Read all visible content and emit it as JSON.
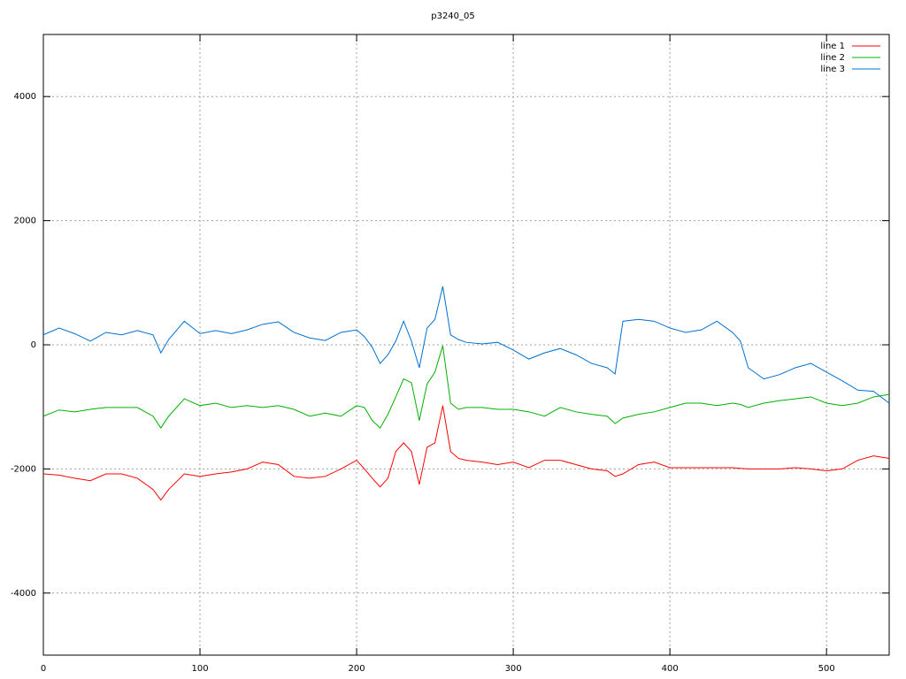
{
  "chart_data": {
    "type": "line",
    "title": "p3240_05",
    "x": [
      0,
      10,
      20,
      30,
      40,
      50,
      60,
      70,
      75,
      80,
      90,
      100,
      110,
      120,
      130,
      140,
      150,
      160,
      170,
      180,
      190,
      200,
      205,
      210,
      215,
      220,
      225,
      230,
      235,
      240,
      245,
      250,
      255,
      260,
      265,
      270,
      280,
      290,
      300,
      310,
      320,
      330,
      340,
      350,
      360,
      365,
      370,
      380,
      390,
      400,
      410,
      420,
      430,
      440,
      445,
      450,
      460,
      470,
      480,
      490,
      500,
      510,
      520,
      530,
      540
    ],
    "series": [
      {
        "name": "line 1",
        "color": "#ff0000",
        "values": [
          -2080,
          -2100,
          -2150,
          -2190,
          -2080,
          -2080,
          -2150,
          -2330,
          -2500,
          -2330,
          -2080,
          -2120,
          -2080,
          -2050,
          -2000,
          -1890,
          -1930,
          -2120,
          -2150,
          -2120,
          -2000,
          -1860,
          -2000,
          -2150,
          -2290,
          -2150,
          -1720,
          -1580,
          -1720,
          -2250,
          -1650,
          -1580,
          -980,
          -1720,
          -1830,
          -1860,
          -1890,
          -1930,
          -1890,
          -1980,
          -1860,
          -1860,
          -1930,
          -2000,
          -2030,
          -2120,
          -2080,
          -1930,
          -1890,
          -1980,
          -1980,
          -1980,
          -1980,
          -1980,
          -1990,
          -2000,
          -2000,
          -2000,
          -1980,
          -2000,
          -2030,
          -2000,
          -1860,
          -1790,
          -1830
        ]
      },
      {
        "name": "line 2",
        "color": "#00b000",
        "values": [
          -1150,
          -1050,
          -1080,
          -1040,
          -1010,
          -1010,
          -1010,
          -1150,
          -1340,
          -1150,
          -870,
          -980,
          -940,
          -1010,
          -980,
          -1010,
          -980,
          -1040,
          -1150,
          -1100,
          -1150,
          -980,
          -1010,
          -1220,
          -1340,
          -1120,
          -840,
          -550,
          -610,
          -1220,
          -630,
          -440,
          -15,
          -940,
          -1040,
          -1010,
          -1010,
          -1040,
          -1040,
          -1080,
          -1150,
          -1010,
          -1080,
          -1120,
          -1150,
          -1270,
          -1180,
          -1120,
          -1080,
          -1010,
          -940,
          -940,
          -980,
          -940,
          -960,
          -1010,
          -940,
          -900,
          -870,
          -840,
          -940,
          -980,
          -940,
          -840,
          -800
        ]
      },
      {
        "name": "line 3",
        "color": "#0070d0",
        "values": [
          160,
          270,
          180,
          60,
          200,
          160,
          230,
          160,
          -130,
          85,
          380,
          180,
          230,
          180,
          240,
          330,
          370,
          200,
          110,
          70,
          200,
          240,
          130,
          -40,
          -300,
          -160,
          60,
          380,
          60,
          -370,
          270,
          410,
          940,
          160,
          85,
          40,
          15,
          40,
          -85,
          -230,
          -130,
          -60,
          -160,
          -300,
          -370,
          -470,
          380,
          410,
          380,
          270,
          200,
          240,
          380,
          200,
          60,
          -370,
          -550,
          -480,
          -370,
          -300,
          -440,
          -580,
          -730,
          -750,
          -940
        ]
      }
    ],
    "xlim": [
      0,
      540
    ],
    "ylim": [
      -5000,
      5000
    ],
    "xticks": [
      0,
      100,
      200,
      300,
      400,
      500
    ],
    "yticks": [
      -4000,
      -2000,
      0,
      2000,
      4000
    ],
    "grid": true,
    "legend": "top-right"
  }
}
